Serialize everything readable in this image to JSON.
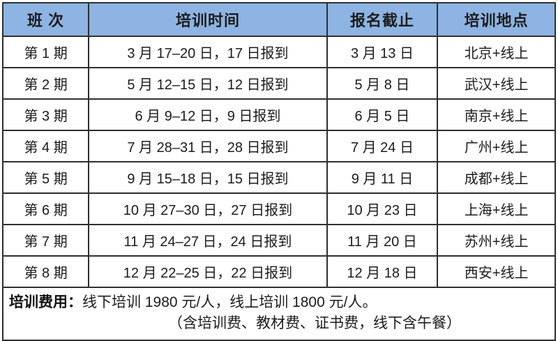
{
  "table": {
    "headers": [
      "班 次",
      "培训时间",
      "报名截止",
      "培训地点"
    ],
    "rows": [
      {
        "period": "第 1 期",
        "time": "3 月 17–20 日，17 日报到",
        "deadline": "3 月 13 日",
        "location": "北京+线上"
      },
      {
        "period": "第 2 期",
        "time": "5 月 12–15 日，12 日报到",
        "deadline": "5 月 8 日",
        "location": "武汉+线上"
      },
      {
        "period": "第 3 期",
        "time": "6 月 9–12 日，9 日报到",
        "deadline": "6 月 5 日",
        "location": "南京+线上"
      },
      {
        "period": "第 4 期",
        "time": "7 月 28–31 日，28 日报到",
        "deadline": "7 月 24 日",
        "location": "广州+线上"
      },
      {
        "period": "第 5 期",
        "time": "9 月 15–18 日，15 日报到",
        "deadline": "9 月 11 日",
        "location": "成都+线上"
      },
      {
        "period": "第 6 期",
        "time": "10 月 27–30 日，27 日报到",
        "deadline": "10 月 23 日",
        "location": "上海+线上"
      },
      {
        "period": "第 7 期",
        "time": "11 月 24–27 日，24 日报到",
        "deadline": "11 月 20 日",
        "location": "苏州+线上"
      },
      {
        "period": "第 8 期",
        "time": "12 月 22–25 日，22 日报到",
        "deadline": "12 月 18 日",
        "location": "西安+线上"
      }
    ]
  },
  "fee": {
    "label": "培训费用：",
    "line1": "线下培训 1980 元/人，线上培训 1800 元/人。",
    "line2": "（含培训费、教材费、证书费，线下含午餐）"
  },
  "colors": {
    "header_bg": "#8DB4E2",
    "border": "#2F2F2F",
    "text": "#1C1C1C"
  }
}
